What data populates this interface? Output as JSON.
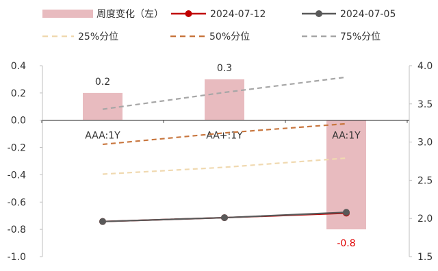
{
  "chart_data": {
    "type": "bar",
    "categories": [
      "AAA:1Y",
      "AA+:1Y",
      "AA:1Y"
    ],
    "bar_series": {
      "name": "周度变化（左）",
      "values": [
        0.2,
        0.3,
        -0.8
      ],
      "labels": [
        "0.2",
        "0.3",
        "-0.8"
      ],
      "color": "#E8BBBF",
      "negative_label_color": "#E00000"
    },
    "line_series": [
      {
        "name": "2024-07-12",
        "values": [
          1.96,
          2.01,
          2.07
        ],
        "color": "#C00000",
        "style": "solid-marker"
      },
      {
        "name": "2024-07-05",
        "values": [
          1.96,
          2.01,
          2.08
        ],
        "color": "#595959",
        "style": "solid-marker"
      },
      {
        "name": "25%分位",
        "values": [
          2.58,
          2.67,
          2.79
        ],
        "color": "#F0D9B0",
        "style": "dashed"
      },
      {
        "name": "50%分位",
        "values": [
          2.97,
          3.12,
          3.24
        ],
        "color": "#C8763E",
        "style": "dashed"
      },
      {
        "name": "75%分位",
        "values": [
          3.43,
          3.65,
          3.85
        ],
        "color": "#A6A6A6",
        "style": "dashed"
      }
    ],
    "y_left": {
      "min": -1.0,
      "max": 0.4,
      "ticks": [
        "0.4",
        "0.2",
        "0.0",
        "-0.2",
        "-0.4",
        "-0.6",
        "-0.8",
        "-1.0"
      ]
    },
    "y_right": {
      "min": 1.5,
      "max": 4.0,
      "ticks": [
        "4.0",
        "3.5",
        "3.0",
        "2.5",
        "2.0",
        "1.5"
      ]
    },
    "legend_position": "top",
    "title": "",
    "xlabel": "",
    "ylabel": ""
  }
}
